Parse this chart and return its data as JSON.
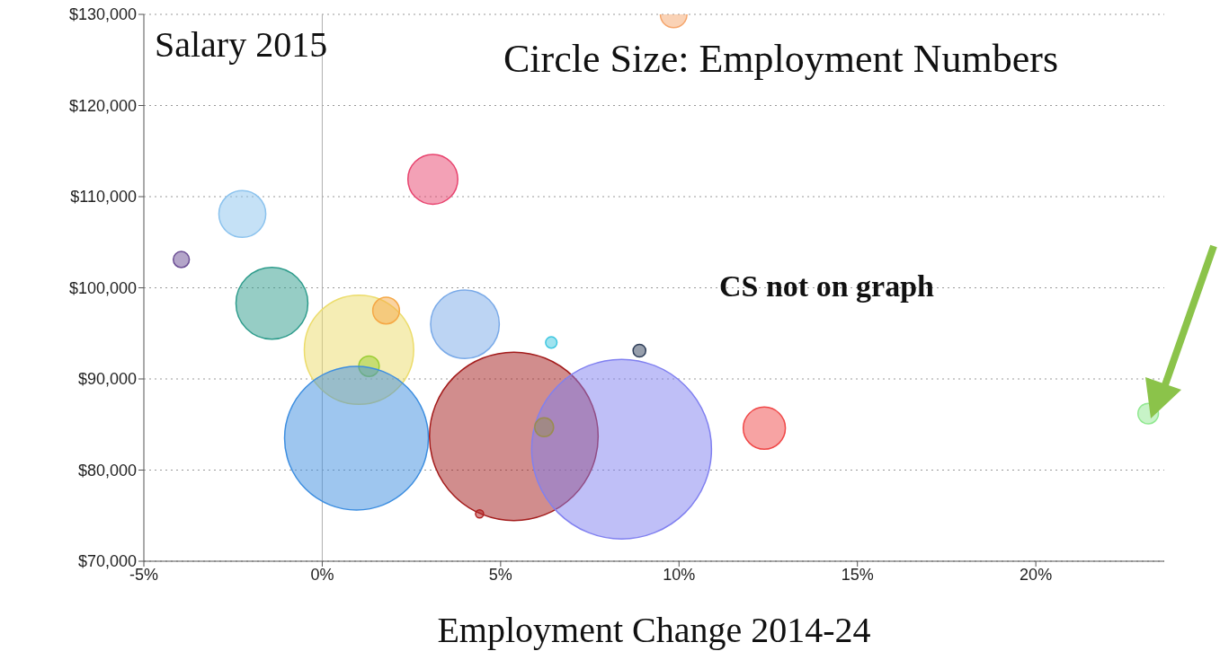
{
  "chart_data": {
    "type": "bubble",
    "xlabel": "Employment Change 2014-24",
    "ylabel": "Salary 2015",
    "annotations": [
      "Circle Size: Employment Numbers",
      "CS not on graph"
    ],
    "x": [
      9.85,
      3.1,
      -2.24,
      -3.95,
      -1.41,
      1.03,
      1.79,
      4.0,
      6.42,
      8.89,
      1.31,
      0.96,
      5.37,
      8.39,
      6.22,
      4.41,
      12.39,
      23.15
    ],
    "values": [
      130000,
      111900,
      108100,
      103100,
      98300,
      93200,
      97500,
      96000,
      94000,
      93100,
      91400,
      83500,
      83700,
      82300,
      84700,
      75200,
      84600,
      86200
    ],
    "sizes": [
      0.022,
      0.077,
      0.068,
      0.008,
      0.16,
      0.37,
      0.022,
      0.146,
      0.004,
      0.005,
      0.013,
      0.64,
      0.88,
      1,
      0.011,
      0.002,
      0.055,
      0.013
    ],
    "colors": [
      "#f5a56b",
      "#e8436e",
      "#8cc3ee",
      "#6a4c93",
      "#2e9c8c",
      "#ecdc6a",
      "#f5a845",
      "#7aaae8",
      "#3fc7e0",
      "#2f3f5a",
      "#9acd32",
      "#3d8ee0",
      "#a31b1b",
      "#8080f0",
      "#9a8c50",
      "#b02020",
      "#f04848",
      "#90e890"
    ],
    "xlim": [
      -5,
      23.6
    ],
    "xticks": [
      {
        "value": -5,
        "label": "-5%"
      },
      {
        "value": 0,
        "label": "0%"
      },
      {
        "value": 5,
        "label": "5%"
      },
      {
        "value": 10,
        "label": "10%"
      },
      {
        "value": 15,
        "label": "15%"
      },
      {
        "value": 20,
        "label": "20%"
      }
    ],
    "ylim": [
      70000,
      130000
    ],
    "yticks": [
      {
        "value": 70000,
        "label": "$70,000"
      },
      {
        "value": 80000,
        "label": "$80,000"
      },
      {
        "value": 90000,
        "label": "$90,000"
      },
      {
        "value": 100000,
        "label": "$100,000"
      },
      {
        "value": 110000,
        "label": "$110,000"
      },
      {
        "value": 120000,
        "label": "$120,000"
      },
      {
        "value": 130000,
        "label": "$130,000"
      }
    ],
    "grid": "y",
    "legend": false,
    "ref_lines": [
      {
        "axis": "x",
        "value": 0,
        "color": "#b0b0b0"
      }
    ]
  }
}
